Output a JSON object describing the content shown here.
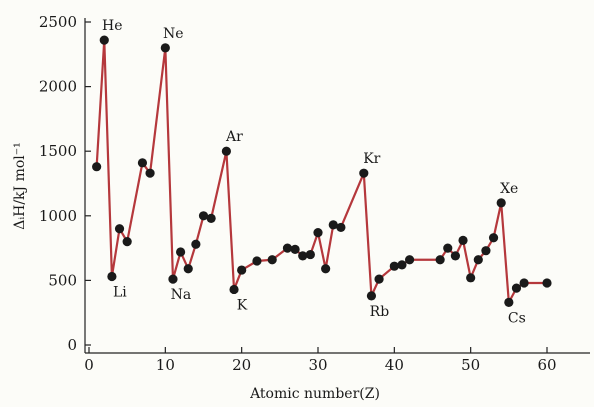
{
  "chart_data": {
    "type": "line",
    "xlabel": "Atomic number(Z)",
    "ylabel": "ΔᵢH/kJ mol⁻¹",
    "xlim": [
      0,
      60
    ],
    "ylim": [
      0,
      2500
    ],
    "xticks": [
      0,
      10,
      20,
      30,
      40,
      50,
      60
    ],
    "yticks": [
      0,
      500,
      1000,
      1500,
      2000,
      2500
    ],
    "line_color": "#b5383c",
    "marker_color": "#1a1a1a",
    "axis_color": "#222222",
    "grid": false,
    "x": [
      1,
      2,
      3,
      4,
      5,
      7,
      8,
      10,
      11,
      12,
      13,
      14,
      15,
      16,
      18,
      19,
      20,
      22,
      24,
      26,
      27,
      28,
      29,
      30,
      31,
      32,
      33,
      36,
      37,
      38,
      40,
      41,
      42,
      46,
      47,
      48,
      49,
      50,
      51,
      52,
      53,
      54,
      55,
      56,
      57,
      60
    ],
    "y": [
      1380,
      2360,
      530,
      900,
      800,
      1410,
      1330,
      2300,
      510,
      720,
      590,
      780,
      1000,
      980,
      1500,
      430,
      580,
      650,
      660,
      750,
      740,
      690,
      700,
      870,
      590,
      930,
      910,
      1330,
      380,
      510,
      610,
      620,
      660,
      660,
      750,
      690,
      810,
      520,
      660,
      730,
      830,
      1100,
      330,
      440,
      480,
      480
    ],
    "annotations": [
      {
        "text": "He",
        "x": 2,
        "y": 2360,
        "pos": "above"
      },
      {
        "text": "Li",
        "x": 3,
        "y": 530,
        "pos": "below"
      },
      {
        "text": "Ne",
        "x": 10,
        "y": 2300,
        "pos": "above"
      },
      {
        "text": "Na",
        "x": 11,
        "y": 510,
        "pos": "below"
      },
      {
        "text": "Ar",
        "x": 18,
        "y": 1500,
        "pos": "above"
      },
      {
        "text": "K",
        "x": 19,
        "y": 430,
        "pos": "below"
      },
      {
        "text": "Kr",
        "x": 36,
        "y": 1330,
        "pos": "above"
      },
      {
        "text": "Rb",
        "x": 37,
        "y": 380,
        "pos": "below"
      },
      {
        "text": "Xe",
        "x": 54,
        "y": 1100,
        "pos": "above"
      },
      {
        "text": "Cs",
        "x": 55,
        "y": 330,
        "pos": "below"
      }
    ]
  }
}
